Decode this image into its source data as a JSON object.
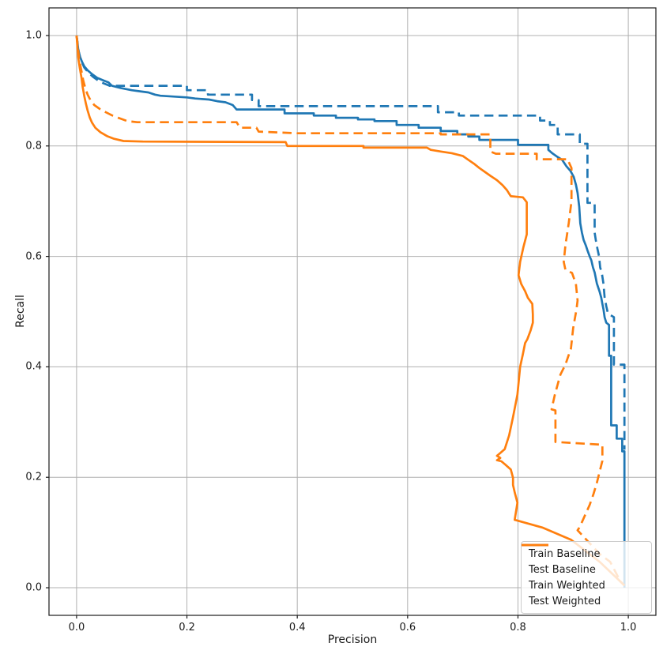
{
  "chart_data": {
    "type": "line",
    "title": "",
    "xlabel": "Precision",
    "ylabel": "Recall",
    "xlim": [
      -0.05,
      1.05
    ],
    "ylim": [
      -0.05,
      1.05
    ],
    "grid": true,
    "legend_position": "lower right",
    "x_ticks": [
      0.0,
      0.2,
      0.4,
      0.6,
      0.8,
      1.0
    ],
    "x_tick_labels": [
      "0.0",
      "0.2",
      "0.4",
      "0.6",
      "0.8",
      "1.0"
    ],
    "y_ticks": [
      0.0,
      0.2,
      0.4,
      0.6,
      0.8,
      1.0
    ],
    "y_tick_labels": [
      "0.0",
      "0.2",
      "0.4",
      "0.6",
      "0.8",
      "1.0"
    ],
    "grid_color": "#b0b0b0",
    "spine_color": "#1a1a1a",
    "series": [
      {
        "name": "Train Baseline",
        "color": "#1f77b4",
        "style": "solid",
        "points": [
          [
            0,
            1
          ],
          [
            0.003,
            0.975
          ],
          [
            0.006,
            0.962
          ],
          [
            0.01,
            0.952
          ],
          [
            0.014,
            0.944
          ],
          [
            0.02,
            0.937
          ],
          [
            0.028,
            0.93
          ],
          [
            0.038,
            0.923
          ],
          [
            0.048,
            0.919
          ],
          [
            0.058,
            0.915
          ],
          [
            0.064,
            0.909
          ],
          [
            0.08,
            0.905
          ],
          [
            0.1,
            0.901
          ],
          [
            0.115,
            0.899
          ],
          [
            0.13,
            0.897
          ],
          [
            0.142,
            0.893
          ],
          [
            0.152,
            0.891
          ],
          [
            0.2,
            0.888
          ],
          [
            0.215,
            0.886
          ],
          [
            0.24,
            0.884
          ],
          [
            0.255,
            0.881
          ],
          [
            0.27,
            0.879
          ],
          [
            0.283,
            0.874
          ],
          [
            0.29,
            0.866
          ],
          [
            0.377,
            0.866
          ],
          [
            0.377,
            0.859
          ],
          [
            0.43,
            0.859
          ],
          [
            0.43,
            0.855
          ],
          [
            0.47,
            0.855
          ],
          [
            0.47,
            0.851
          ],
          [
            0.51,
            0.851
          ],
          [
            0.51,
            0.848
          ],
          [
            0.54,
            0.848
          ],
          [
            0.54,
            0.845
          ],
          [
            0.58,
            0.845
          ],
          [
            0.58,
            0.838
          ],
          [
            0.62,
            0.838
          ],
          [
            0.62,
            0.833
          ],
          [
            0.66,
            0.833
          ],
          [
            0.66,
            0.827
          ],
          [
            0.69,
            0.827
          ],
          [
            0.69,
            0.821
          ],
          [
            0.71,
            0.821
          ],
          [
            0.71,
            0.817
          ],
          [
            0.73,
            0.817
          ],
          [
            0.73,
            0.811
          ],
          [
            0.8,
            0.811
          ],
          [
            0.8,
            0.802
          ],
          [
            0.855,
            0.802
          ],
          [
            0.855,
            0.793
          ],
          [
            0.862,
            0.787
          ],
          [
            0.872,
            0.78
          ],
          [
            0.88,
            0.775
          ],
          [
            0.888,
            0.763
          ],
          [
            0.895,
            0.755
          ],
          [
            0.901,
            0.744
          ],
          [
            0.905,
            0.73
          ],
          [
            0.908,
            0.715
          ],
          [
            0.911,
            0.69
          ],
          [
            0.913,
            0.66
          ],
          [
            0.916,
            0.643
          ],
          [
            0.919,
            0.63
          ],
          [
            0.923,
            0.62
          ],
          [
            0.926,
            0.611
          ],
          [
            0.93,
            0.6
          ],
          [
            0.933,
            0.593
          ],
          [
            0.936,
            0.58
          ],
          [
            0.939,
            0.571
          ],
          [
            0.943,
            0.551
          ],
          [
            0.948,
            0.536
          ],
          [
            0.951,
            0.525
          ],
          [
            0.953,
            0.514
          ],
          [
            0.955,
            0.504
          ],
          [
            0.957,
            0.49
          ],
          [
            0.96,
            0.48
          ],
          [
            0.965,
            0.476
          ],
          [
            0.965,
            0.42
          ],
          [
            0.969,
            0.42
          ],
          [
            0.969,
            0.294
          ],
          [
            0.979,
            0.294
          ],
          [
            0.979,
            0.27
          ],
          [
            0.989,
            0.27
          ],
          [
            0.989,
            0.247
          ],
          [
            0.993,
            0.247
          ],
          [
            0.993,
            0
          ]
        ]
      },
      {
        "name": "Test Baseline",
        "color": "#1f77b4",
        "style": "dashed",
        "points": [
          [
            0,
            1
          ],
          [
            0.004,
            0.97
          ],
          [
            0.008,
            0.955
          ],
          [
            0.014,
            0.942
          ],
          [
            0.022,
            0.932
          ],
          [
            0.03,
            0.925
          ],
          [
            0.04,
            0.918
          ],
          [
            0.05,
            0.913
          ],
          [
            0.06,
            0.909
          ],
          [
            0.2,
            0.909
          ],
          [
            0.2,
            0.901
          ],
          [
            0.238,
            0.901
          ],
          [
            0.238,
            0.893
          ],
          [
            0.318,
            0.893
          ],
          [
            0.318,
            0.883
          ],
          [
            0.33,
            0.883
          ],
          [
            0.33,
            0.872
          ],
          [
            0.655,
            0.872
          ],
          [
            0.655,
            0.861
          ],
          [
            0.693,
            0.861
          ],
          [
            0.693,
            0.855
          ],
          [
            0.84,
            0.855
          ],
          [
            0.84,
            0.846
          ],
          [
            0.858,
            0.846
          ],
          [
            0.858,
            0.838
          ],
          [
            0.872,
            0.838
          ],
          [
            0.872,
            0.821
          ],
          [
            0.912,
            0.821
          ],
          [
            0.912,
            0.804
          ],
          [
            0.926,
            0.804
          ],
          [
            0.926,
            0.697
          ],
          [
            0.939,
            0.697
          ],
          [
            0.939,
            0.643
          ],
          [
            0.941,
            0.63
          ],
          [
            0.944,
            0.614
          ],
          [
            0.947,
            0.6
          ],
          [
            0.949,
            0.58
          ],
          [
            0.952,
            0.57
          ],
          [
            0.955,
            0.55
          ],
          [
            0.957,
            0.526
          ],
          [
            0.96,
            0.51
          ],
          [
            0.963,
            0.497
          ],
          [
            0.967,
            0.494
          ],
          [
            0.974,
            0.49
          ],
          [
            0.974,
            0.404
          ],
          [
            0.993,
            0.404
          ],
          [
            0.993,
            0.25
          ]
        ]
      },
      {
        "name": "Train Weighted",
        "color": "#ff7f0e",
        "style": "solid",
        "points": [
          [
            0,
            1
          ],
          [
            0.003,
            0.96
          ],
          [
            0.006,
            0.94
          ],
          [
            0.009,
            0.923
          ],
          [
            0.011,
            0.907
          ],
          [
            0.014,
            0.89
          ],
          [
            0.017,
            0.876
          ],
          [
            0.02,
            0.864
          ],
          [
            0.024,
            0.851
          ],
          [
            0.028,
            0.842
          ],
          [
            0.034,
            0.833
          ],
          [
            0.043,
            0.825
          ],
          [
            0.055,
            0.818
          ],
          [
            0.068,
            0.813
          ],
          [
            0.085,
            0.809
          ],
          [
            0.12,
            0.808
          ],
          [
            0.379,
            0.807
          ],
          [
            0.382,
            0.8
          ],
          [
            0.52,
            0.8
          ],
          [
            0.52,
            0.797
          ],
          [
            0.635,
            0.797
          ],
          [
            0.642,
            0.793
          ],
          [
            0.66,
            0.79
          ],
          [
            0.68,
            0.787
          ],
          [
            0.7,
            0.782
          ],
          [
            0.71,
            0.775
          ],
          [
            0.72,
            0.768
          ],
          [
            0.73,
            0.76
          ],
          [
            0.74,
            0.753
          ],
          [
            0.75,
            0.746
          ],
          [
            0.762,
            0.738
          ],
          [
            0.772,
            0.729
          ],
          [
            0.78,
            0.72
          ],
          [
            0.785,
            0.712
          ],
          [
            0.787,
            0.709
          ],
          [
            0.809,
            0.707
          ],
          [
            0.813,
            0.702
          ],
          [
            0.816,
            0.698
          ],
          [
            0.816,
            0.64
          ],
          [
            0.81,
            0.617
          ],
          [
            0.804,
            0.59
          ],
          [
            0.801,
            0.566
          ],
          [
            0.806,
            0.55
          ],
          [
            0.813,
            0.537
          ],
          [
            0.818,
            0.525
          ],
          [
            0.826,
            0.514
          ],
          [
            0.827,
            0.495
          ],
          [
            0.827,
            0.48
          ],
          [
            0.823,
            0.466
          ],
          [
            0.817,
            0.45
          ],
          [
            0.813,
            0.443
          ],
          [
            0.809,
            0.423
          ],
          [
            0.804,
            0.4
          ],
          [
            0.799,
            0.35
          ],
          [
            0.791,
            0.309
          ],
          [
            0.784,
            0.276
          ],
          [
            0.776,
            0.251
          ],
          [
            0.768,
            0.244
          ],
          [
            0.762,
            0.239
          ],
          [
            0.768,
            0.235
          ],
          [
            0.762,
            0.231
          ],
          [
            0.77,
            0.229
          ],
          [
            0.777,
            0.223
          ],
          [
            0.787,
            0.214
          ],
          [
            0.791,
            0.199
          ],
          [
            0.791,
            0.186
          ],
          [
            0.794,
            0.173
          ],
          [
            0.799,
            0.154
          ],
          [
            0.794,
            0.123
          ],
          [
            0.844,
            0.109
          ],
          [
            0.896,
            0.087
          ],
          [
            0.948,
            0.047
          ],
          [
            0.986,
            0.011
          ],
          [
            0.993,
            0.004
          ]
        ]
      },
      {
        "name": "Test Weighted",
        "color": "#ff7f0e",
        "style": "dashed",
        "points": [
          [
            0,
            1
          ],
          [
            0.005,
            0.955
          ],
          [
            0.009,
            0.935
          ],
          [
            0.012,
            0.919
          ],
          [
            0.016,
            0.904
          ],
          [
            0.02,
            0.893
          ],
          [
            0.025,
            0.883
          ],
          [
            0.032,
            0.874
          ],
          [
            0.042,
            0.867
          ],
          [
            0.053,
            0.861
          ],
          [
            0.065,
            0.855
          ],
          [
            0.078,
            0.85
          ],
          [
            0.092,
            0.845
          ],
          [
            0.11,
            0.843
          ],
          [
            0.29,
            0.843
          ],
          [
            0.296,
            0.833
          ],
          [
            0.326,
            0.833
          ],
          [
            0.33,
            0.826
          ],
          [
            0.4,
            0.823
          ],
          [
            0.66,
            0.823
          ],
          [
            0.66,
            0.821
          ],
          [
            0.75,
            0.821
          ],
          [
            0.75,
            0.79
          ],
          [
            0.76,
            0.786
          ],
          [
            0.834,
            0.786
          ],
          [
            0.834,
            0.776
          ],
          [
            0.891,
            0.776
          ],
          [
            0.891,
            0.773
          ],
          [
            0.897,
            0.76
          ],
          [
            0.897,
            0.7
          ],
          [
            0.892,
            0.66
          ],
          [
            0.886,
            0.62
          ],
          [
            0.883,
            0.59
          ],
          [
            0.886,
            0.576
          ],
          [
            0.898,
            0.57
          ],
          [
            0.905,
            0.55
          ],
          [
            0.908,
            0.52
          ],
          [
            0.906,
            0.504
          ],
          [
            0.9,
            0.47
          ],
          [
            0.896,
            0.433
          ],
          [
            0.886,
            0.404
          ],
          [
            0.877,
            0.386
          ],
          [
            0.867,
            0.35
          ],
          [
            0.861,
            0.323
          ],
          [
            0.868,
            0.321
          ],
          [
            0.868,
            0.264
          ],
          [
            0.953,
            0.259
          ],
          [
            0.953,
            0.23
          ],
          [
            0.948,
            0.21
          ],
          [
            0.943,
            0.19
          ],
          [
            0.937,
            0.17
          ],
          [
            0.93,
            0.15
          ],
          [
            0.921,
            0.13
          ],
          [
            0.912,
            0.11
          ],
          [
            0.908,
            0.104
          ],
          [
            0.925,
            0.086
          ],
          [
            0.948,
            0.061
          ],
          [
            0.967,
            0.047
          ],
          [
            0.986,
            0.011
          ],
          [
            0.993,
            0.004
          ]
        ]
      }
    ]
  }
}
